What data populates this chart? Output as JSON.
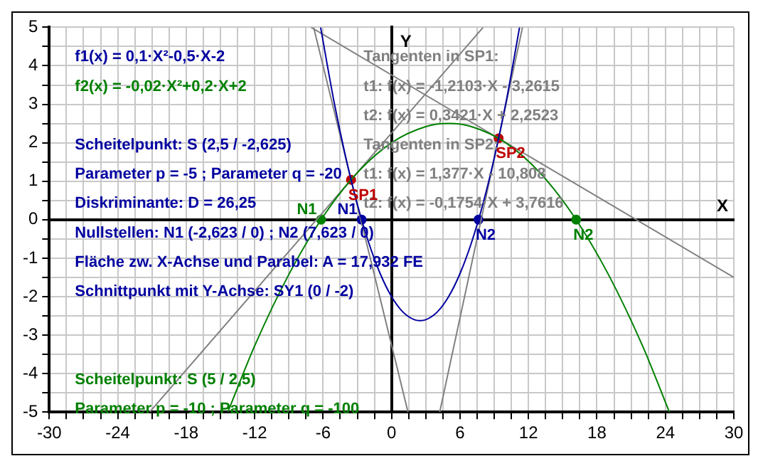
{
  "chart_data": {
    "type": "line",
    "xlabel": "X",
    "ylabel": "Y",
    "xlim": [
      -30,
      30
    ],
    "xticks": [
      -30,
      {
        "value": -28.5,
        "label": null
      },
      {
        "value": -27,
        "label": null
      },
      {
        "value": -25.5,
        "label": null
      },
      -24,
      {
        "value": -22.5,
        "label": null
      },
      {
        "value": -21,
        "label": null
      },
      {
        "value": -19.5,
        "label": null
      },
      -18,
      {
        "value": -16.5,
        "label": null
      },
      {
        "value": -15,
        "label": null
      },
      {
        "value": -13.5,
        "label": null
      },
      -12,
      {
        "value": -10.5,
        "label": null
      },
      {
        "value": -9,
        "label": null
      },
      {
        "value": -7.5,
        "label": null
      },
      -6,
      {
        "value": -4.5,
        "label": null
      },
      {
        "value": -3,
        "label": null
      },
      {
        "value": -1.5,
        "label": null
      },
      0,
      {
        "value": 1.5,
        "label": null
      },
      {
        "value": 3,
        "label": null
      },
      {
        "value": 4.5,
        "label": null
      },
      6,
      {
        "value": 7.5,
        "label": null
      },
      {
        "value": 9,
        "label": null
      },
      {
        "value": 10.5,
        "label": null
      },
      12,
      {
        "value": 13.5,
        "label": null
      },
      {
        "value": 15,
        "label": null
      },
      {
        "value": 16.5,
        "label": null
      },
      18,
      {
        "value": 19.5,
        "label": null
      },
      {
        "value": 21,
        "label": null
      },
      {
        "value": 22.5,
        "label": null
      },
      24,
      {
        "value": 25.5,
        "label": null
      },
      {
        "value": 27,
        "label": null
      },
      {
        "value": 28.5,
        "label": null
      },
      30
    ],
    "ylim": [
      -5,
      5
    ],
    "yticks": [
      -5,
      {
        "value": -4.5,
        "label": null
      },
      -4,
      {
        "value": -3.5,
        "label": null
      },
      -3,
      {
        "value": -2.5,
        "label": null
      },
      -2,
      {
        "value": -1.5,
        "label": null
      },
      -1,
      {
        "value": -0.5,
        "label": null
      },
      0,
      {
        "value": 0.5,
        "label": null
      },
      1,
      {
        "value": 1.5,
        "label": null
      },
      2,
      {
        "value": 2.5,
        "label": null
      },
      3,
      {
        "value": 3.5,
        "label": null
      },
      4,
      {
        "value": 4.5,
        "label": null
      },
      5
    ],
    "grid": true,
    "legend": false,
    "series": [
      {
        "color": "#0000a0",
        "x": [
          -6.22,
          -5,
          -4,
          -3,
          -2,
          -1,
          0,
          1,
          2,
          2.5,
          3,
          4,
          5,
          6,
          7,
          8,
          9,
          10,
          11.22
        ],
        "values": [
          5,
          3,
          1.6,
          0.4,
          -0.6,
          -1.4,
          -2,
          -2.4,
          -2.6,
          -2.625,
          -2.6,
          -2.4,
          -2,
          -1.4,
          -0.6,
          0.4,
          1.6,
          3,
          5
        ]
      },
      {
        "color": "#008000",
        "x": [
          -14.35,
          -12,
          -9,
          -6,
          -3,
          0,
          3,
          5,
          7,
          10,
          13,
          16,
          19,
          22,
          24.35
        ],
        "values": [
          -5,
          -3.28,
          -1.42,
          0.08,
          1.22,
          2,
          2.42,
          2.5,
          2.42,
          2,
          1.22,
          0.08,
          -1.42,
          -3.28,
          -5
        ]
      },
      {
        "color": "#808080",
        "x": [
          -6.83,
          1.44
        ],
        "values": [
          5,
          -5
        ]
      },
      {
        "color": "#808080",
        "x": [
          -21.2,
          8.03
        ],
        "values": [
          -5,
          5
        ]
      },
      {
        "color": "#808080",
        "x": [
          4.22,
          11.48
        ],
        "values": [
          -5,
          5
        ]
      },
      {
        "color": "#808080",
        "x": [
          -7.06,
          30
        ],
        "values": [
          5,
          -1.5
        ]
      },
      {
        "type": "scatter",
        "color": "#0000a0",
        "x": [
          -2.623,
          7.623
        ],
        "values": [
          0,
          0
        ]
      },
      {
        "type": "scatter",
        "color": "#008000",
        "x": [
          -6.18,
          16.18
        ],
        "values": [
          0,
          0
        ]
      },
      {
        "type": "scatter",
        "color": "#c00000",
        "x": [
          -3.552,
          9.385
        ],
        "values": [
          1.038,
          2.115
        ]
      }
    ],
    "annotations": [
      "f1(x) = 0,1·X²-0,5·X-2",
      "f2(x) = -0,02·X²+0,2·X+2",
      "Scheitelpunkt: S (2,5 / -2,625)",
      "Parameter p = -5 ; Parameter q = -20",
      "Diskriminante: D = 26,25",
      "Nullstellen: N1 (-2,623 / 0) ; N2 (7,623 / 0)",
      "Fläche zw. X-Achse und Parabel: A = 17,932 FE",
      "Schnittpunkt mit Y-Achse: SY1 (0 / -2)",
      "Scheitelpunkt: S (5 / 2,5)",
      "Parameter p = -10 ; Parameter q = -100",
      "Tangenten in SP1:",
      "t1: f(x) = -1,2103·X - 3,2615",
      "t2: f(x) = 0,3421·X + 2,2523",
      "Tangenten in SP2:",
      "t1: f(x) = 1,377·X - 10,808",
      "t2: f(x) = -0,1754·X + 3,7616",
      {
        "text": "N1",
        "x": -2.623,
        "y": 0
      },
      {
        "text": "N2",
        "x": 7.623,
        "y": 0
      },
      {
        "text": "N1",
        "x": -6.18,
        "y": 0
      },
      {
        "text": "N2",
        "x": 16.18,
        "y": 0
      },
      {
        "text": "SP1",
        "x": -3.552,
        "y": 1.038
      },
      {
        "text": "SP2",
        "x": 9.385,
        "y": 2.115
      }
    ]
  }
}
